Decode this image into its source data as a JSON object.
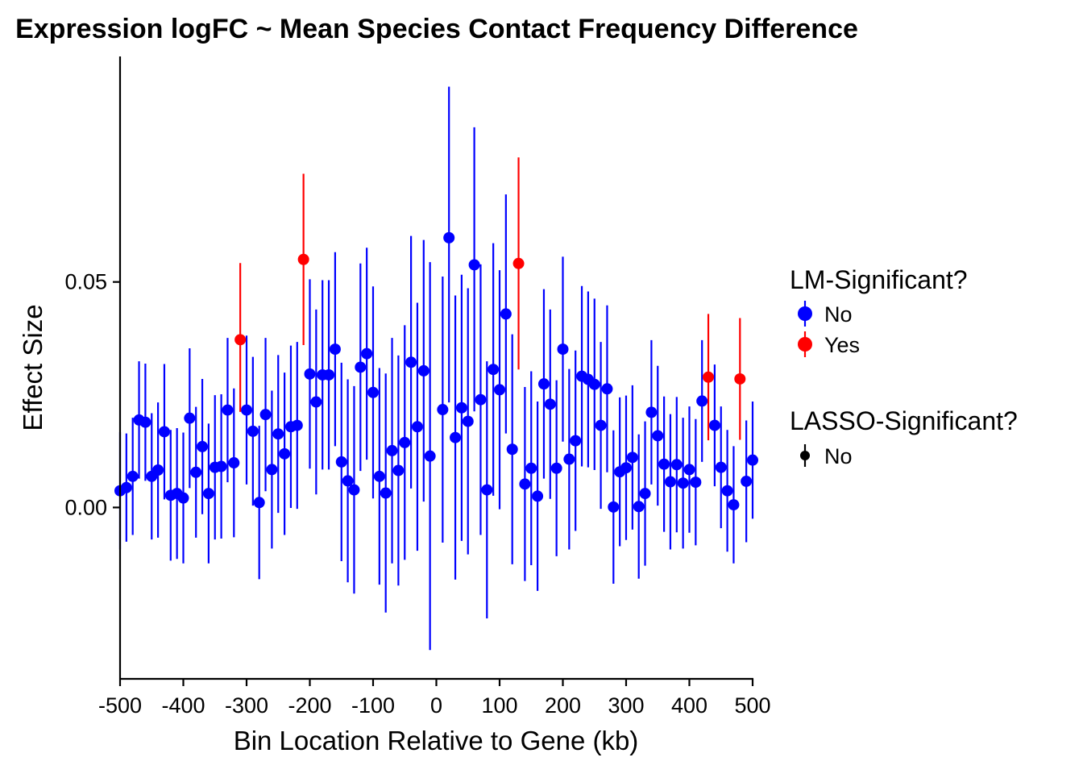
{
  "chart_data": {
    "type": "scatter",
    "title": "Expression logFC ~ Mean Species Contact Frequency Difference",
    "xlabel": "Bin Location Relative to Gene (kb)",
    "ylabel": "Effect Size",
    "xlim": [
      -500,
      500
    ],
    "ylim": [
      -0.038,
      0.1
    ],
    "x_ticks": [
      {
        "value": -500,
        "label": "-500"
      },
      {
        "value": -400,
        "label": "-400"
      },
      {
        "value": -300,
        "label": "-300"
      },
      {
        "value": -200,
        "label": "-200"
      },
      {
        "value": -100,
        "label": "-100"
      },
      {
        "value": 0,
        "label": "0"
      },
      {
        "value": 100,
        "label": "100"
      },
      {
        "value": 200,
        "label": "200"
      },
      {
        "value": 300,
        "label": "300"
      },
      {
        "value": 400,
        "label": "400"
      },
      {
        "value": 500,
        "label": "500"
      }
    ],
    "y_ticks": [
      {
        "value": 0,
        "label": "0.00"
      },
      {
        "value": 0.05,
        "label": "0.05"
      }
    ],
    "grid": false,
    "legend_position": "right",
    "colors": {
      "No": "#0000ff",
      "Yes": "#ff0000",
      "lasso_key": "#000000"
    },
    "legends": [
      {
        "title": "LM-Significant?",
        "entries": [
          {
            "label": "No",
            "color": "#0000ff"
          },
          {
            "label": "Yes",
            "color": "#ff0000"
          }
        ]
      },
      {
        "title": "LASSO-Significant?",
        "entries": [
          {
            "label": "No",
            "color": "#000000"
          }
        ]
      }
    ],
    "series": [
      {
        "name": "No",
        "color": "#0000ff",
        "points": [
          {
            "x": -500,
            "y": 0.0037,
            "lo": -0.0093,
            "hi": 0.0167
          },
          {
            "x": -490,
            "y": 0.0044,
            "lo": -0.0076,
            "hi": 0.0164
          },
          {
            "x": -480,
            "y": 0.0069,
            "lo": -0.0061,
            "hi": 0.0199
          },
          {
            "x": -470,
            "y": 0.0194,
            "lo": 0.0064,
            "hi": 0.0324
          },
          {
            "x": -460,
            "y": 0.0189,
            "lo": 0.0059,
            "hi": 0.0319
          },
          {
            "x": -450,
            "y": 0.0069,
            "lo": -0.0071,
            "hi": 0.0209
          },
          {
            "x": -440,
            "y": 0.0083,
            "lo": -0.0067,
            "hi": 0.0233
          },
          {
            "x": -430,
            "y": 0.0168,
            "lo": 0.0018,
            "hi": 0.0318
          },
          {
            "x": -420,
            "y": 0.0027,
            "lo": -0.0118,
            "hi": 0.0172
          },
          {
            "x": -410,
            "y": 0.0031,
            "lo": -0.0114,
            "hi": 0.0176
          },
          {
            "x": -400,
            "y": 0.0021,
            "lo": -0.0124,
            "hi": 0.0166
          },
          {
            "x": -390,
            "y": 0.0198,
            "lo": 0.0043,
            "hi": 0.0353
          },
          {
            "x": -380,
            "y": 0.0078,
            "lo": -0.0067,
            "hi": 0.0223
          },
          {
            "x": -370,
            "y": 0.0135,
            "lo": -0.0015,
            "hi": 0.0285
          },
          {
            "x": -360,
            "y": 0.0031,
            "lo": -0.0124,
            "hi": 0.0186
          },
          {
            "x": -350,
            "y": 0.0089,
            "lo": -0.0071,
            "hi": 0.0249
          },
          {
            "x": -340,
            "y": 0.0091,
            "lo": -0.0069,
            "hi": 0.0251
          },
          {
            "x": -330,
            "y": 0.0216,
            "lo": 0.0056,
            "hi": 0.0376
          },
          {
            "x": -320,
            "y": 0.0099,
            "lo": -0.0066,
            "hi": 0.0264
          },
          {
            "x": -300,
            "y": 0.0216,
            "lo": 0.0051,
            "hi": 0.0381
          },
          {
            "x": -290,
            "y": 0.0169,
            "lo": 0.0004,
            "hi": 0.0334
          },
          {
            "x": -280,
            "y": 0.0011,
            "lo": -0.0159,
            "hi": 0.0181
          },
          {
            "x": -270,
            "y": 0.0206,
            "lo": 0.0036,
            "hi": 0.0376
          },
          {
            "x": -260,
            "y": 0.0084,
            "lo": -0.0091,
            "hi": 0.0259
          },
          {
            "x": -250,
            "y": 0.0163,
            "lo": -0.0012,
            "hi": 0.0338
          },
          {
            "x": -240,
            "y": 0.0119,
            "lo": -0.0061,
            "hi": 0.0299
          },
          {
            "x": -230,
            "y": 0.0179,
            "lo": -0.0001,
            "hi": 0.0359
          },
          {
            "x": -220,
            "y": 0.0182,
            "lo": -0.0003,
            "hi": 0.0367
          },
          {
            "x": -200,
            "y": 0.0296,
            "lo": 0.0086,
            "hi": 0.0506
          },
          {
            "x": -190,
            "y": 0.0234,
            "lo": 0.0029,
            "hi": 0.0439
          },
          {
            "x": -180,
            "y": 0.0294,
            "lo": 0.0084,
            "hi": 0.0504
          },
          {
            "x": -170,
            "y": 0.0294,
            "lo": 0.0084,
            "hi": 0.0504
          },
          {
            "x": -160,
            "y": 0.0351,
            "lo": 0.0136,
            "hi": 0.0566
          },
          {
            "x": -150,
            "y": 0.0101,
            "lo": -0.0119,
            "hi": 0.0321
          },
          {
            "x": -140,
            "y": 0.0059,
            "lo": -0.0166,
            "hi": 0.0284
          },
          {
            "x": -130,
            "y": 0.0039,
            "lo": -0.0191,
            "hi": 0.0269
          },
          {
            "x": -120,
            "y": 0.0311,
            "lo": 0.0081,
            "hi": 0.0541
          },
          {
            "x": -110,
            "y": 0.0341,
            "lo": 0.0106,
            "hi": 0.0576
          },
          {
            "x": -100,
            "y": 0.0255,
            "lo": 0.002,
            "hi": 0.049
          },
          {
            "x": -90,
            "y": 0.0069,
            "lo": -0.0171,
            "hi": 0.0309
          },
          {
            "x": -80,
            "y": 0.0032,
            "lo": -0.0233,
            "hi": 0.0297
          },
          {
            "x": -70,
            "y": 0.0126,
            "lo": -0.0124,
            "hi": 0.0376
          },
          {
            "x": -60,
            "y": 0.0082,
            "lo": -0.0173,
            "hi": 0.0337
          },
          {
            "x": -50,
            "y": 0.0144,
            "lo": -0.0116,
            "hi": 0.0404
          },
          {
            "x": -40,
            "y": 0.0322,
            "lo": 0.0042,
            "hi": 0.0602
          },
          {
            "x": -30,
            "y": 0.0179,
            "lo": -0.0096,
            "hi": 0.0454
          },
          {
            "x": -20,
            "y": 0.0303,
            "lo": 0.0013,
            "hi": 0.0593
          },
          {
            "x": -10,
            "y": 0.0114,
            "lo": -0.0316,
            "hi": 0.0544
          },
          {
            "x": 10,
            "y": 0.0217,
            "lo": -0.0078,
            "hi": 0.0512
          },
          {
            "x": 20,
            "y": 0.0598,
            "lo": 0.0233,
            "hi": 0.0933
          },
          {
            "x": 30,
            "y": 0.0155,
            "lo": -0.016,
            "hi": 0.047
          },
          {
            "x": 40,
            "y": 0.0221,
            "lo": -0.0074,
            "hi": 0.0516
          },
          {
            "x": 50,
            "y": 0.0191,
            "lo": -0.0104,
            "hi": 0.0486
          },
          {
            "x": 60,
            "y": 0.0538,
            "lo": 0.0213,
            "hi": 0.0843
          },
          {
            "x": 70,
            "y": 0.0239,
            "lo": -0.0061,
            "hi": 0.0539
          },
          {
            "x": 80,
            "y": 0.0039,
            "lo": -0.0246,
            "hi": 0.0324
          },
          {
            "x": 90,
            "y": 0.0306,
            "lo": 0.0026,
            "hi": 0.0586
          },
          {
            "x": 100,
            "y": 0.0261,
            "lo": -0.0004,
            "hi": 0.0526
          },
          {
            "x": 110,
            "y": 0.0429,
            "lo": 0.0164,
            "hi": 0.0694
          },
          {
            "x": 120,
            "y": 0.0129,
            "lo": -0.0126,
            "hi": 0.0384
          },
          {
            "x": 140,
            "y": 0.0052,
            "lo": -0.0163,
            "hi": 0.0267
          },
          {
            "x": 150,
            "y": 0.0087,
            "lo": -0.0128,
            "hi": 0.0302
          },
          {
            "x": 160,
            "y": 0.0025,
            "lo": -0.0185,
            "hi": 0.0235
          },
          {
            "x": 170,
            "y": 0.0274,
            "lo": 0.0064,
            "hi": 0.0484
          },
          {
            "x": 180,
            "y": 0.0229,
            "lo": 0.0019,
            "hi": 0.0439
          },
          {
            "x": 190,
            "y": 0.0087,
            "lo": -0.0108,
            "hi": 0.0282
          },
          {
            "x": 200,
            "y": 0.0351,
            "lo": 0.0146,
            "hi": 0.0556
          },
          {
            "x": 210,
            "y": 0.0107,
            "lo": -0.0093,
            "hi": 0.0307
          },
          {
            "x": 220,
            "y": 0.0148,
            "lo": -0.0052,
            "hi": 0.0348
          },
          {
            "x": 230,
            "y": 0.0291,
            "lo": 0.0091,
            "hi": 0.0491
          },
          {
            "x": 240,
            "y": 0.0284,
            "lo": 0.0089,
            "hi": 0.0479
          },
          {
            "x": 250,
            "y": 0.0273,
            "lo": 0.0083,
            "hi": 0.0463
          },
          {
            "x": 260,
            "y": 0.0182,
            "lo": -0.0003,
            "hi": 0.0367
          },
          {
            "x": 270,
            "y": 0.0263,
            "lo": 0.0078,
            "hi": 0.0448
          },
          {
            "x": 280,
            "y": 0.0001,
            "lo": -0.0169,
            "hi": 0.0171
          },
          {
            "x": 290,
            "y": 0.0079,
            "lo": -0.0086,
            "hi": 0.0244
          },
          {
            "x": 300,
            "y": 0.0088,
            "lo": -0.0072,
            "hi": 0.0248
          },
          {
            "x": 310,
            "y": 0.0111,
            "lo": -0.0049,
            "hi": 0.0271
          },
          {
            "x": 320,
            "y": 0.0002,
            "lo": -0.0158,
            "hi": 0.0162
          },
          {
            "x": 330,
            "y": 0.0031,
            "lo": -0.0129,
            "hi": 0.0191
          },
          {
            "x": 340,
            "y": 0.0211,
            "lo": 0.0051,
            "hi": 0.0371
          },
          {
            "x": 350,
            "y": 0.0159,
            "lo": 0.0004,
            "hi": 0.0314
          },
          {
            "x": 360,
            "y": 0.0096,
            "lo": -0.0054,
            "hi": 0.0246
          },
          {
            "x": 370,
            "y": 0.0057,
            "lo": -0.0093,
            "hi": 0.0207
          },
          {
            "x": 380,
            "y": 0.0095,
            "lo": -0.0055,
            "hi": 0.0245
          },
          {
            "x": 390,
            "y": 0.0054,
            "lo": -0.0091,
            "hi": 0.0199
          },
          {
            "x": 400,
            "y": 0.0084,
            "lo": -0.0056,
            "hi": 0.0224
          },
          {
            "x": 410,
            "y": 0.0056,
            "lo": -0.0084,
            "hi": 0.0196
          },
          {
            "x": 420,
            "y": 0.0236,
            "lo": 0.0101,
            "hi": 0.0371
          },
          {
            "x": 440,
            "y": 0.0182,
            "lo": 0.0047,
            "hi": 0.0317
          },
          {
            "x": 450,
            "y": 0.0089,
            "lo": -0.0046,
            "hi": 0.0224
          },
          {
            "x": 460,
            "y": 0.0037,
            "lo": -0.0098,
            "hi": 0.0172
          },
          {
            "x": 470,
            "y": 0.0006,
            "lo": -0.0124,
            "hi": 0.0136
          },
          {
            "x": 490,
            "y": 0.0058,
            "lo": -0.0077,
            "hi": 0.0193
          },
          {
            "x": 500,
            "y": 0.0105,
            "lo": -0.0025,
            "hi": 0.0235
          }
        ]
      },
      {
        "name": "Yes",
        "color": "#ff0000",
        "points": [
          {
            "x": -310,
            "y": 0.0372,
            "lo": 0.0212,
            "hi": 0.0542
          },
          {
            "x": -210,
            "y": 0.055,
            "lo": 0.036,
            "hi": 0.074
          },
          {
            "x": 130,
            "y": 0.0541,
            "lo": 0.0306,
            "hi": 0.0776
          },
          {
            "x": 430,
            "y": 0.0289,
            "lo": 0.0149,
            "hi": 0.0429
          },
          {
            "x": 480,
            "y": 0.0285,
            "lo": 0.015,
            "hi": 0.042
          }
        ]
      }
    ]
  }
}
